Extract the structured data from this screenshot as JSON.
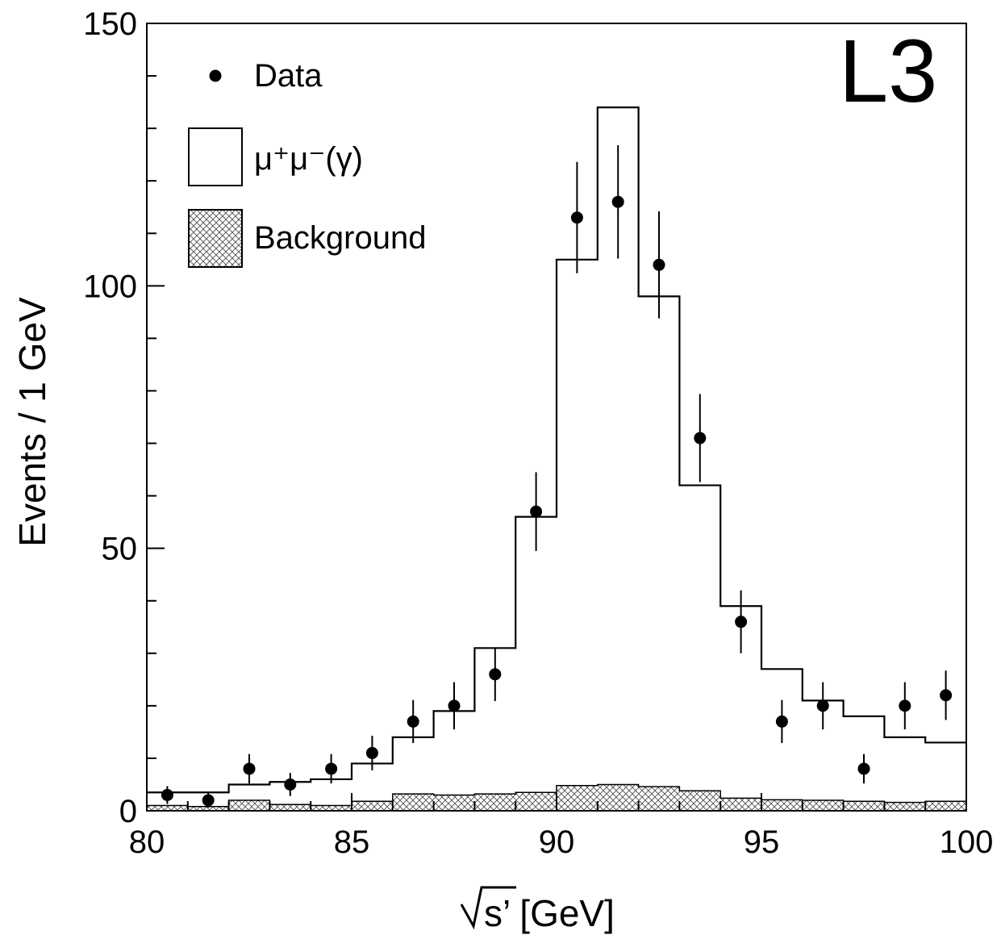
{
  "chart_data": {
    "type": "histogram",
    "logo": "L3",
    "xlabel": "s’ [GeV]",
    "ylabel": "Events / 1 GeV",
    "xlim": [
      80,
      100
    ],
    "ylim": [
      0,
      150
    ],
    "xticks": [
      "80",
      "85",
      "90",
      "95",
      "100"
    ],
    "yticks": [
      "0",
      "50",
      "100",
      "150"
    ],
    "bin_edges": [
      80,
      81,
      82,
      83,
      84,
      85,
      86,
      87,
      88,
      89,
      90,
      91,
      92,
      93,
      94,
      95,
      96,
      97,
      98,
      99,
      100
    ],
    "series": [
      {
        "name": "μ⁺μ⁻(γ)",
        "style": "step",
        "values": [
          3.5,
          3.5,
          5,
          5.5,
          6,
          9,
          14,
          19,
          31,
          56,
          105,
          134,
          98,
          62,
          39,
          27,
          21,
          18,
          14,
          13
        ]
      },
      {
        "name": "Background",
        "style": "hatched",
        "values": [
          1,
          0.8,
          2,
          1.2,
          1,
          1.8,
          3.2,
          3,
          3.2,
          3.5,
          4.8,
          5,
          4.6,
          3.8,
          2.4,
          2.1,
          2,
          1.8,
          1.6,
          1.8
        ]
      },
      {
        "name": "Data",
        "style": "points",
        "x": [
          80.5,
          81.5,
          82.5,
          83.5,
          84.5,
          85.5,
          86.5,
          87.5,
          88.5,
          89.5,
          90.5,
          91.5,
          92.5,
          93.5,
          94.5,
          95.5,
          96.5,
          97.5,
          98.5,
          99.5
        ],
        "y": [
          3,
          2,
          8,
          5,
          8,
          11,
          17,
          20,
          26,
          57,
          113,
          116,
          104,
          71,
          36,
          17,
          20,
          8,
          20,
          22
        ],
        "err": [
          1.7,
          1.4,
          2.8,
          2.2,
          2.8,
          3.3,
          4.1,
          4.5,
          5.1,
          7.5,
          10.6,
          10.8,
          10.2,
          8.4,
          6,
          4.1,
          4.5,
          2.8,
          4.5,
          4.7
        ]
      }
    ],
    "legend": {
      "placement": "top-left",
      "entries": [
        "Data",
        "μ⁺μ⁻(γ)",
        "Background"
      ]
    }
  }
}
